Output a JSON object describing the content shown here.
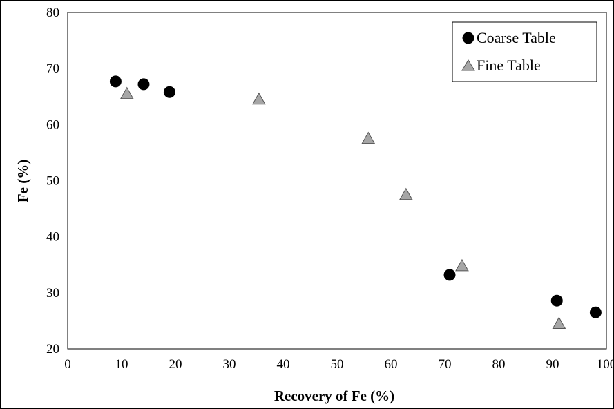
{
  "chart_data": {
    "type": "scatter",
    "title": "",
    "xlabel": "Recovery of Fe (%)",
    "ylabel": "Fe (%)",
    "xlim": [
      0,
      100
    ],
    "ylim": [
      20,
      80
    ],
    "xticks": [
      "0",
      "10",
      "20",
      "30",
      "40",
      "50",
      "60",
      "70",
      "80",
      "90",
      "100"
    ],
    "yticks": [
      "20",
      "30",
      "40",
      "50",
      "60",
      "70",
      "80"
    ],
    "grid": false,
    "legend_position": "top-right",
    "series": [
      {
        "name": "Coarse Table",
        "marker": "circle",
        "color": "#000000",
        "points": [
          {
            "x": 8.9,
            "y": 67.7
          },
          {
            "x": 14.1,
            "y": 67.2
          },
          {
            "x": 18.9,
            "y": 65.8
          },
          {
            "x": 70.9,
            "y": 33.2
          },
          {
            "x": 90.8,
            "y": 28.6
          },
          {
            "x": 98.0,
            "y": 26.5
          }
        ]
      },
      {
        "name": "Fine Table",
        "marker": "triangle",
        "color": "#a6a6a6",
        "points": [
          {
            "x": 11.0,
            "y": 65.5
          },
          {
            "x": 35.5,
            "y": 64.5
          },
          {
            "x": 55.8,
            "y": 57.5
          },
          {
            "x": 62.8,
            "y": 47.5
          },
          {
            "x": 73.2,
            "y": 34.8
          },
          {
            "x": 91.2,
            "y": 24.5
          }
        ]
      }
    ]
  }
}
